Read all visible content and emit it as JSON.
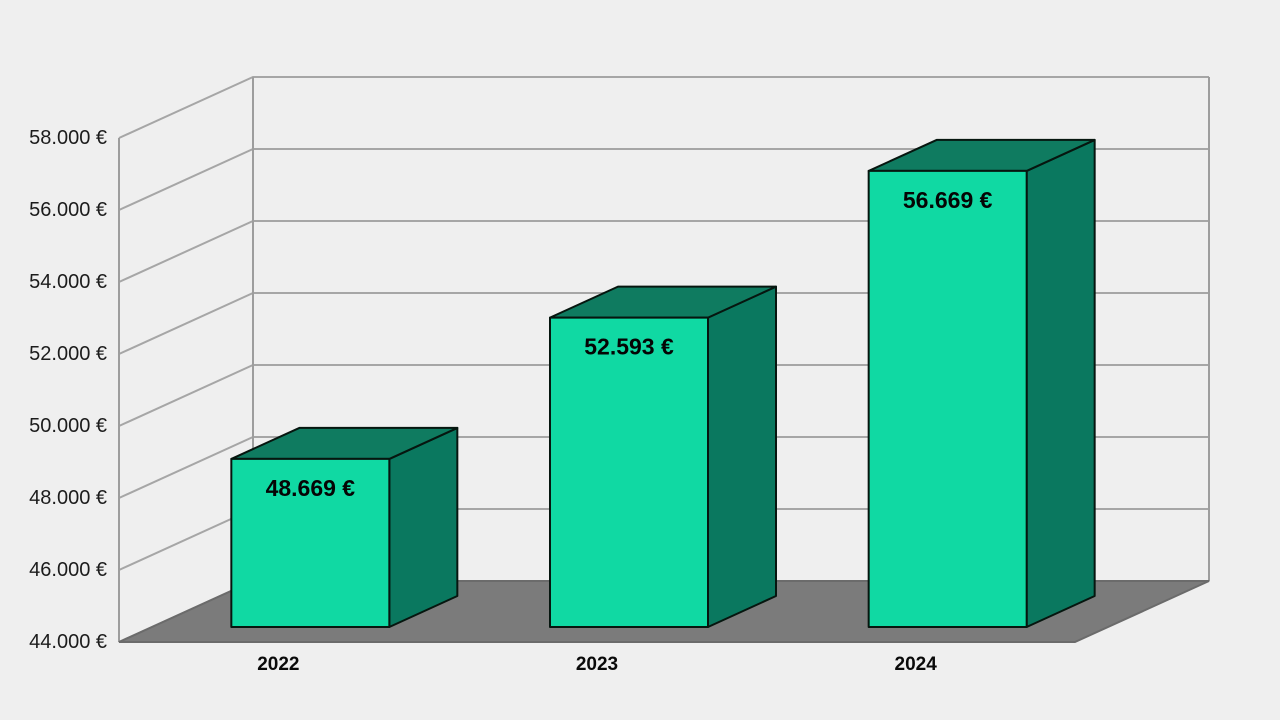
{
  "page": {
    "background_color": "#efefef"
  },
  "chart_data": {
    "type": "bar",
    "variant": "3d-column",
    "title": "",
    "xlabel": "",
    "ylabel": "",
    "categories": [
      "2022",
      "2023",
      "2024"
    ],
    "series": [
      {
        "name": "",
        "values": [
          48669,
          52593,
          56669
        ]
      }
    ],
    "data_labels": [
      "48.669 €",
      "52.593 €",
      "56.669 €"
    ],
    "unit": "€",
    "ylim": [
      44000,
      58000
    ],
    "y_tick_step": 2000,
    "y_ticks": [
      {
        "value": 58000,
        "label": "58.000 €"
      },
      {
        "value": 56000,
        "label": "56.000 €"
      },
      {
        "value": 54000,
        "label": "54.000 €"
      },
      {
        "value": 52000,
        "label": "52.000 €"
      },
      {
        "value": 50000,
        "label": "50.000 €"
      },
      {
        "value": 48000,
        "label": "48.000 €"
      },
      {
        "value": 46000,
        "label": "46.000 €"
      },
      {
        "value": 44000,
        "label": "44.000 €"
      }
    ],
    "grid": true,
    "legend": "none",
    "colors": {
      "background": "#efefef",
      "wall_fill": "#efefef",
      "gridline": "#a6a6a6",
      "wall_edge": "#9d9d9d",
      "floor": "#7b7b7b",
      "floor_edge": "#6b6b6b",
      "bar_front": "#10d9a3",
      "bar_top": "#0f7b60",
      "bar_side": "#0a785f",
      "bar_outline": "#06160f",
      "tick_text": "#1c1c1c",
      "category_text": "#0a0a0a",
      "value_text": "#050505"
    }
  }
}
